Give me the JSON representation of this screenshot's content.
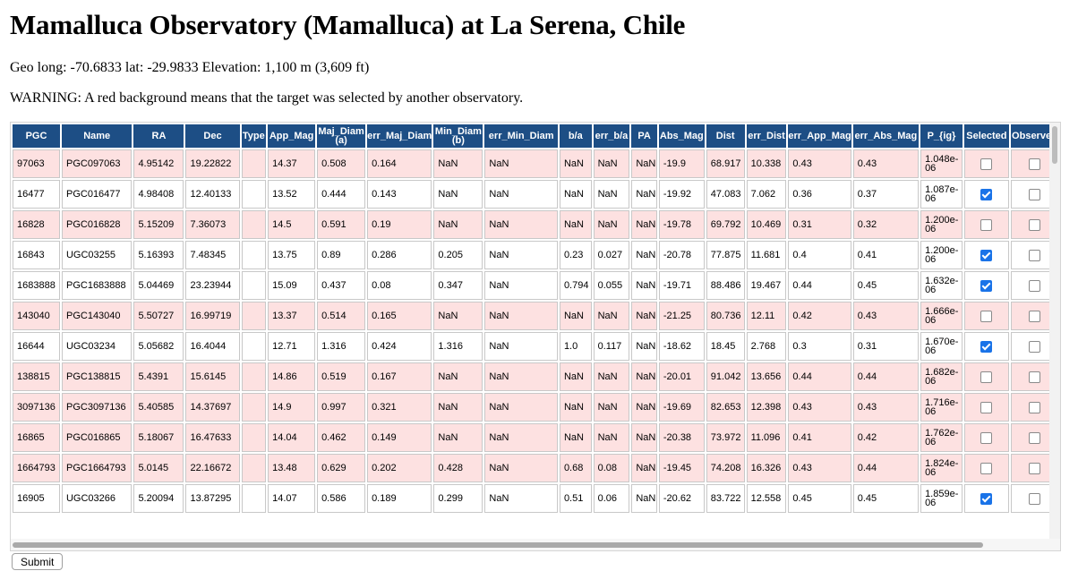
{
  "page": {
    "title": "Mamalluca Observatory (Mamalluca) at La Serena, Chile",
    "geo": "Geo long: -70.6833 lat: -29.9833 Elevation: 1,100 m (3,609 ft)",
    "warning": "WARNING: A red background means that the target was selected by another observatory.",
    "submit_label": "Submit"
  },
  "colors": {
    "header_bg": "#1d4e85",
    "selected_by_other_bg": "#fde1e1",
    "checkbox_on": "#1a73e8"
  },
  "table": {
    "columns": [
      "PGC",
      "Name",
      "RA",
      "Dec",
      "Type",
      "App_Mag",
      "Maj_Diam (a)",
      "err_Maj_Diam",
      "Min_Diam (b)",
      "err_Min_Diam",
      "b/a",
      "err_b/a",
      "PA",
      "Abs_Mag",
      "Dist",
      "err_Dist",
      "err_App_Mag",
      "err_Abs_Mag",
      "P_{ig}",
      "Selected",
      "Observed"
    ],
    "rows": [
      {
        "red": true,
        "cells": [
          "97063",
          "PGC097063",
          "4.95142",
          "19.22822",
          "",
          "14.37",
          "0.508",
          "0.164",
          "NaN",
          "NaN",
          "NaN",
          "NaN",
          "NaN",
          "-19.9",
          "68.917",
          "10.338",
          "0.43",
          "0.43",
          "1.048e-06"
        ],
        "selected": false,
        "observed": false
      },
      {
        "red": false,
        "cells": [
          "16477",
          "PGC016477",
          "4.98408",
          "12.40133",
          "",
          "13.52",
          "0.444",
          "0.143",
          "NaN",
          "NaN",
          "NaN",
          "NaN",
          "NaN",
          "-19.92",
          "47.083",
          "7.062",
          "0.36",
          "0.37",
          "1.087e-06"
        ],
        "selected": true,
        "observed": false
      },
      {
        "red": true,
        "cells": [
          "16828",
          "PGC016828",
          "5.15209",
          "7.36073",
          "",
          "14.5",
          "0.591",
          "0.19",
          "NaN",
          "NaN",
          "NaN",
          "NaN",
          "NaN",
          "-19.78",
          "69.792",
          "10.469",
          "0.31",
          "0.32",
          "1.200e-06"
        ],
        "selected": false,
        "observed": false
      },
      {
        "red": false,
        "cells": [
          "16843",
          "UGC03255",
          "5.16393",
          "7.48345",
          "",
          "13.75",
          "0.89",
          "0.286",
          "0.205",
          "NaN",
          "0.23",
          "0.027",
          "NaN",
          "-20.78",
          "77.875",
          "11.681",
          "0.4",
          "0.41",
          "1.200e-06"
        ],
        "selected": true,
        "observed": false
      },
      {
        "red": false,
        "cells": [
          "1683888",
          "PGC1683888",
          "5.04469",
          "23.23944",
          "",
          "15.09",
          "0.437",
          "0.08",
          "0.347",
          "NaN",
          "0.794",
          "0.055",
          "NaN",
          "-19.71",
          "88.486",
          "19.467",
          "0.44",
          "0.45",
          "1.632e-06"
        ],
        "selected": true,
        "observed": false
      },
      {
        "red": true,
        "cells": [
          "143040",
          "PGC143040",
          "5.50727",
          "16.99719",
          "",
          "13.37",
          "0.514",
          "0.165",
          "NaN",
          "NaN",
          "NaN",
          "NaN",
          "NaN",
          "-21.25",
          "80.736",
          "12.11",
          "0.42",
          "0.43",
          "1.666e-06"
        ],
        "selected": false,
        "observed": false
      },
      {
        "red": false,
        "cells": [
          "16644",
          "UGC03234",
          "5.05682",
          "16.4044",
          "",
          "12.71",
          "1.316",
          "0.424",
          "1.316",
          "NaN",
          "1.0",
          "0.117",
          "NaN",
          "-18.62",
          "18.45",
          "2.768",
          "0.3",
          "0.31",
          "1.670e-06"
        ],
        "selected": true,
        "observed": false
      },
      {
        "red": true,
        "cells": [
          "138815",
          "PGC138815",
          "5.4391",
          "15.6145",
          "",
          "14.86",
          "0.519",
          "0.167",
          "NaN",
          "NaN",
          "NaN",
          "NaN",
          "NaN",
          "-20.01",
          "91.042",
          "13.656",
          "0.44",
          "0.44",
          "1.682e-06"
        ],
        "selected": false,
        "observed": false
      },
      {
        "red": true,
        "cells": [
          "3097136",
          "PGC3097136",
          "5.40585",
          "14.37697",
          "",
          "14.9",
          "0.997",
          "0.321",
          "NaN",
          "NaN",
          "NaN",
          "NaN",
          "NaN",
          "-19.69",
          "82.653",
          "12.398",
          "0.43",
          "0.43",
          "1.716e-06"
        ],
        "selected": false,
        "observed": false
      },
      {
        "red": true,
        "cells": [
          "16865",
          "PGC016865",
          "5.18067",
          "16.47633",
          "",
          "14.04",
          "0.462",
          "0.149",
          "NaN",
          "NaN",
          "NaN",
          "NaN",
          "NaN",
          "-20.38",
          "73.972",
          "11.096",
          "0.41",
          "0.42",
          "1.762e-06"
        ],
        "selected": false,
        "observed": false
      },
      {
        "red": true,
        "cells": [
          "1664793",
          "PGC1664793",
          "5.0145",
          "22.16672",
          "",
          "13.48",
          "0.629",
          "0.202",
          "0.428",
          "NaN",
          "0.68",
          "0.08",
          "NaN",
          "-19.45",
          "74.208",
          "16.326",
          "0.43",
          "0.44",
          "1.824e-06"
        ],
        "selected": false,
        "observed": false
      },
      {
        "red": false,
        "cells": [
          "16905",
          "UGC03266",
          "5.20094",
          "13.87295",
          "",
          "14.07",
          "0.586",
          "0.189",
          "0.299",
          "NaN",
          "0.51",
          "0.06",
          "NaN",
          "-20.62",
          "83.722",
          "12.558",
          "0.45",
          "0.45",
          "1.859e-06"
        ],
        "selected": true,
        "observed": false
      }
    ]
  }
}
